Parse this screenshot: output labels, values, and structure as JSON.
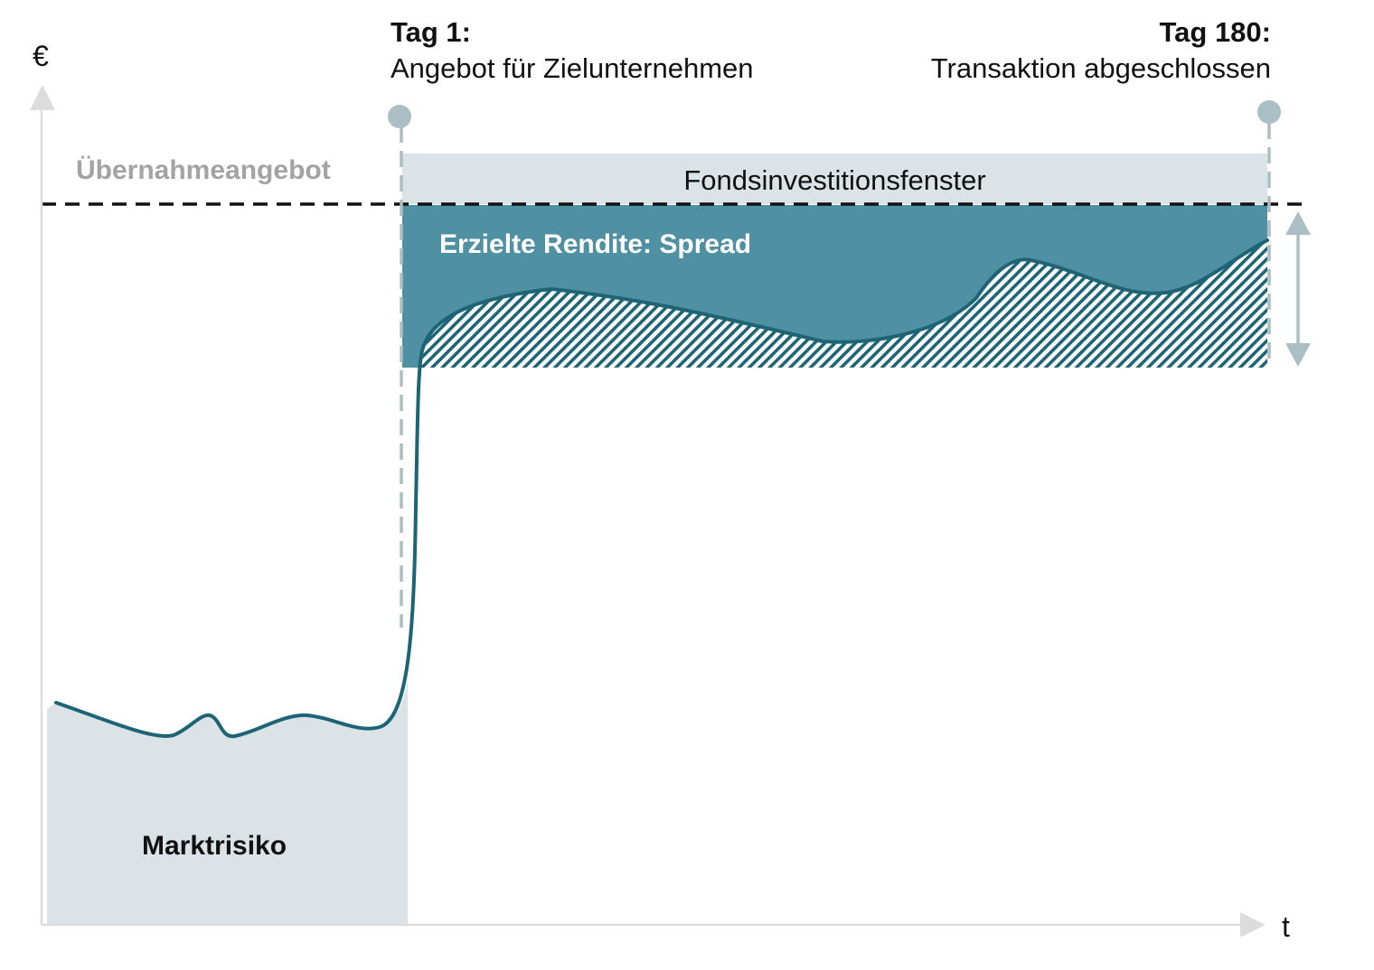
{
  "axes": {
    "y_label": "€",
    "x_label": "t"
  },
  "milestones": {
    "start": {
      "title": "Tag 1:",
      "description": "Angebot für Zielunternehmen"
    },
    "end": {
      "title": "Tag 180:",
      "description": "Transaktion abgeschlossen"
    }
  },
  "regions": {
    "offer_level_label": "Übernahmeangebot",
    "investment_window_label": "Fondsinvestitionsfenster",
    "spread_label": "Erzielte Rendite: Spread",
    "market_risk_label": "Marktrisiko"
  },
  "colors": {
    "teal_fill": "#4f91a2",
    "curve": "#1d6576",
    "light_gray_fill": "#dce3e6",
    "axis": "#dcdcdc",
    "marker": "#a9bfc4",
    "offer_label": "#a3a3a3"
  }
}
